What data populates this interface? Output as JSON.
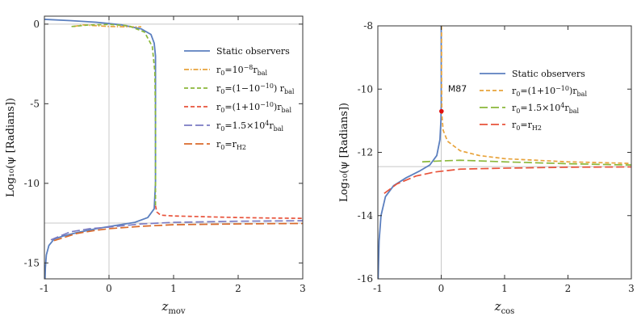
{
  "chart_data": [
    {
      "type": "line",
      "id": "left",
      "xlabel": "z",
      "xlabel_sub": "mov",
      "ylabel": "Log₁₀(ψ [Radians])",
      "xlim": [
        -1,
        3
      ],
      "ylim": [
        -16,
        0.5
      ],
      "xticks": [
        -1,
        0,
        1,
        2,
        3
      ],
      "yticks": [
        0,
        -5,
        -10,
        -15
      ],
      "reference_lines": {
        "x": 0,
        "y_lines": [
          0,
          -12.5
        ]
      },
      "series": [
        {
          "name": "Static observers",
          "color": "#5b7fbf",
          "dash": "solid",
          "points": [
            [
              -0.99,
              -16
            ],
            [
              -0.985,
              -15.3
            ],
            [
              -0.97,
              -14.5
            ],
            [
              -0.93,
              -13.9
            ],
            [
              -0.85,
              -13.5
            ],
            [
              -0.7,
              -13.3
            ],
            [
              -0.5,
              -13.1
            ],
            [
              -0.2,
              -12.85
            ],
            [
              0.1,
              -12.65
            ],
            [
              0.4,
              -12.45
            ],
            [
              0.6,
              -12.15
            ],
            [
              0.7,
              -11.6
            ],
            [
              0.72,
              -10
            ],
            [
              0.72,
              -6
            ],
            [
              0.72,
              -2
            ],
            [
              0.7,
              -1.2
            ],
            [
              0.65,
              -0.65
            ],
            [
              0.5,
              -0.3
            ],
            [
              0.2,
              -0.05
            ],
            [
              -0.2,
              0.12
            ],
            [
              -0.6,
              0.22
            ],
            [
              -1,
              0.3
            ]
          ]
        },
        {
          "name": "r₀=10⁻⁸r_bal",
          "color": "#e8a33b",
          "dash": "dashdot",
          "points": [
            [
              -0.55,
              -0.15
            ],
            [
              -0.4,
              -0.05
            ],
            [
              -0.2,
              -0.1
            ],
            [
              0,
              -0.15
            ],
            [
              0.3,
              -0.17
            ],
            [
              0.5,
              -0.17
            ]
          ]
        },
        {
          "name": "r₀=(1−10⁻¹⁰) r_bal",
          "color": "#8bb83a",
          "dash": "dash",
          "points": [
            [
              -0.58,
              -0.15
            ],
            [
              -0.3,
              -0.05
            ],
            [
              0,
              -0.02
            ],
            [
              0.3,
              -0.1
            ],
            [
              0.55,
              -0.5
            ],
            [
              0.67,
              -1.4
            ],
            [
              0.71,
              -3
            ],
            [
              0.72,
              -6
            ],
            [
              0.72,
              -9
            ],
            [
              0.72,
              -11.4
            ]
          ]
        },
        {
          "name": "r₀=(1+10⁻¹⁰)r_bal",
          "color": "#e8533b",
          "dash": "dash",
          "points": [
            [
              0.72,
              -11.4
            ],
            [
              0.74,
              -11.8
            ],
            [
              0.8,
              -12
            ],
            [
              1,
              -12.05
            ],
            [
              1.5,
              -12.1
            ],
            [
              2,
              -12.15
            ],
            [
              2.5,
              -12.18
            ],
            [
              3,
              -12.2
            ]
          ]
        },
        {
          "name": "r₀=1.5×10⁴r_bal",
          "color": "#7b7bc2",
          "dash": "longdash",
          "points": [
            [
              -0.9,
              -13.55
            ],
            [
              -0.6,
              -13.05
            ],
            [
              -0.3,
              -12.85
            ],
            [
              0,
              -12.75
            ],
            [
              0.5,
              -12.55
            ],
            [
              1,
              -12.45
            ],
            [
              2,
              -12.38
            ],
            [
              3,
              -12.35
            ]
          ]
        },
        {
          "name": "r₀=r_H2",
          "color": "#d96a2b",
          "dash": "longdash",
          "points": [
            [
              -0.85,
              -13.6
            ],
            [
              -0.5,
              -13.15
            ],
            [
              -0.2,
              -12.95
            ],
            [
              0,
              -12.85
            ],
            [
              0.5,
              -12.7
            ],
            [
              1,
              -12.6
            ],
            [
              2,
              -12.55
            ],
            [
              3,
              -12.52
            ]
          ]
        }
      ],
      "legend_labels": [
        {
          "base": "Static observers",
          "parts": []
        },
        {
          "base": "r",
          "parts": [
            [
              "sub",
              "0"
            ],
            [
              "",
              "=10"
            ],
            [
              "sup",
              "−8"
            ],
            [
              "",
              "r"
            ],
            [
              "sub",
              "bal"
            ]
          ]
        },
        {
          "base": "r",
          "parts": [
            [
              "sub",
              "0"
            ],
            [
              "",
              "=(1−10"
            ],
            [
              "sup",
              "−10"
            ],
            [
              "",
              ") r"
            ],
            [
              "sub",
              "bal"
            ]
          ]
        },
        {
          "base": "r",
          "parts": [
            [
              "sub",
              "0"
            ],
            [
              "",
              "=(1+10"
            ],
            [
              "sup",
              "−10"
            ],
            [
              "",
              ")r"
            ],
            [
              "sub",
              "bal"
            ]
          ]
        },
        {
          "base": "r",
          "parts": [
            [
              "sub",
              "0"
            ],
            [
              "",
              "=1.5×10"
            ],
            [
              "sup",
              "4"
            ],
            [
              "",
              "r"
            ],
            [
              "sub",
              "bal"
            ]
          ]
        },
        {
          "base": "r",
          "parts": [
            [
              "sub",
              "0"
            ],
            [
              "",
              "=r"
            ],
            [
              "sub",
              "H2"
            ]
          ]
        }
      ]
    },
    {
      "type": "line",
      "id": "right",
      "xlabel": "z",
      "xlabel_sub": "cos",
      "ylabel": "Log₁₀(ψ [Radians])",
      "xlim": [
        -1,
        3
      ],
      "ylim": [
        -16,
        -8
      ],
      "xticks": [
        -1,
        0,
        1,
        2,
        3
      ],
      "yticks": [
        -8,
        -10,
        -12,
        -14,
        -16
      ],
      "reference_lines": {
        "x": 0,
        "y_lines": [
          -12.45
        ]
      },
      "annotation": {
        "label": "M87",
        "x": 0.004,
        "y": -10.7
      },
      "series": [
        {
          "name": "Static observers",
          "color": "#5b7fbf",
          "dash": "solid",
          "points": [
            [
              -0.995,
              -16
            ],
            [
              -0.98,
              -14.8
            ],
            [
              -0.95,
              -14
            ],
            [
              -0.88,
              -13.4
            ],
            [
              -0.75,
              -13.05
            ],
            [
              -0.55,
              -12.8
            ],
            [
              -0.35,
              -12.6
            ],
            [
              -0.18,
              -12.4
            ],
            [
              -0.07,
              -12.1
            ],
            [
              -0.02,
              -11.6
            ],
            [
              -0.005,
              -11
            ],
            [
              0,
              -10.5
            ],
            [
              0,
              -9.5
            ],
            [
              0,
              -8
            ]
          ]
        },
        {
          "name": "r₀=(1+10⁻¹⁰)r_bal",
          "color": "#e8a33b",
          "dash": "dash",
          "points": [
            [
              0.005,
              -8
            ],
            [
              0.005,
              -9.5
            ],
            [
              0.01,
              -10.8
            ],
            [
              0.03,
              -11.3
            ],
            [
              0.1,
              -11.65
            ],
            [
              0.3,
              -11.95
            ],
            [
              0.6,
              -12.1
            ],
            [
              1,
              -12.2
            ],
            [
              2,
              -12.3
            ],
            [
              3,
              -12.35
            ]
          ]
        },
        {
          "name": "r₀=1.5×10⁴r_bal",
          "color": "#8bb83a",
          "dash": "longdash",
          "points": [
            [
              -0.3,
              -12.3
            ],
            [
              0,
              -12.27
            ],
            [
              0.3,
              -12.25
            ],
            [
              0.6,
              -12.27
            ],
            [
              1,
              -12.3
            ],
            [
              2,
              -12.36
            ],
            [
              3,
              -12.4
            ]
          ]
        },
        {
          "name": "r₀=r_H2",
          "color": "#e8533b",
          "dash": "longdash",
          "points": [
            [
              -0.9,
              -13.3
            ],
            [
              -0.7,
              -13
            ],
            [
              -0.4,
              -12.75
            ],
            [
              -0.1,
              -12.62
            ],
            [
              0.3,
              -12.53
            ],
            [
              1,
              -12.5
            ],
            [
              2,
              -12.47
            ],
            [
              3,
              -12.46
            ]
          ]
        }
      ],
      "legend_labels": [
        {
          "base": "Static observers",
          "parts": []
        },
        {
          "base": "r",
          "parts": [
            [
              "sub",
              "0"
            ],
            [
              "",
              "=(1+10"
            ],
            [
              "sup",
              "−10"
            ],
            [
              "",
              ")r"
            ],
            [
              "sub",
              "bal"
            ]
          ]
        },
        {
          "base": "r",
          "parts": [
            [
              "sub",
              "0"
            ],
            [
              "",
              "=1.5×10"
            ],
            [
              "sup",
              "4"
            ],
            [
              "",
              "r"
            ],
            [
              "sub",
              "bal"
            ]
          ]
        },
        {
          "base": "r",
          "parts": [
            [
              "sub",
              "0"
            ],
            [
              "",
              "=r"
            ],
            [
              "sub",
              "H2"
            ]
          ]
        }
      ]
    }
  ]
}
